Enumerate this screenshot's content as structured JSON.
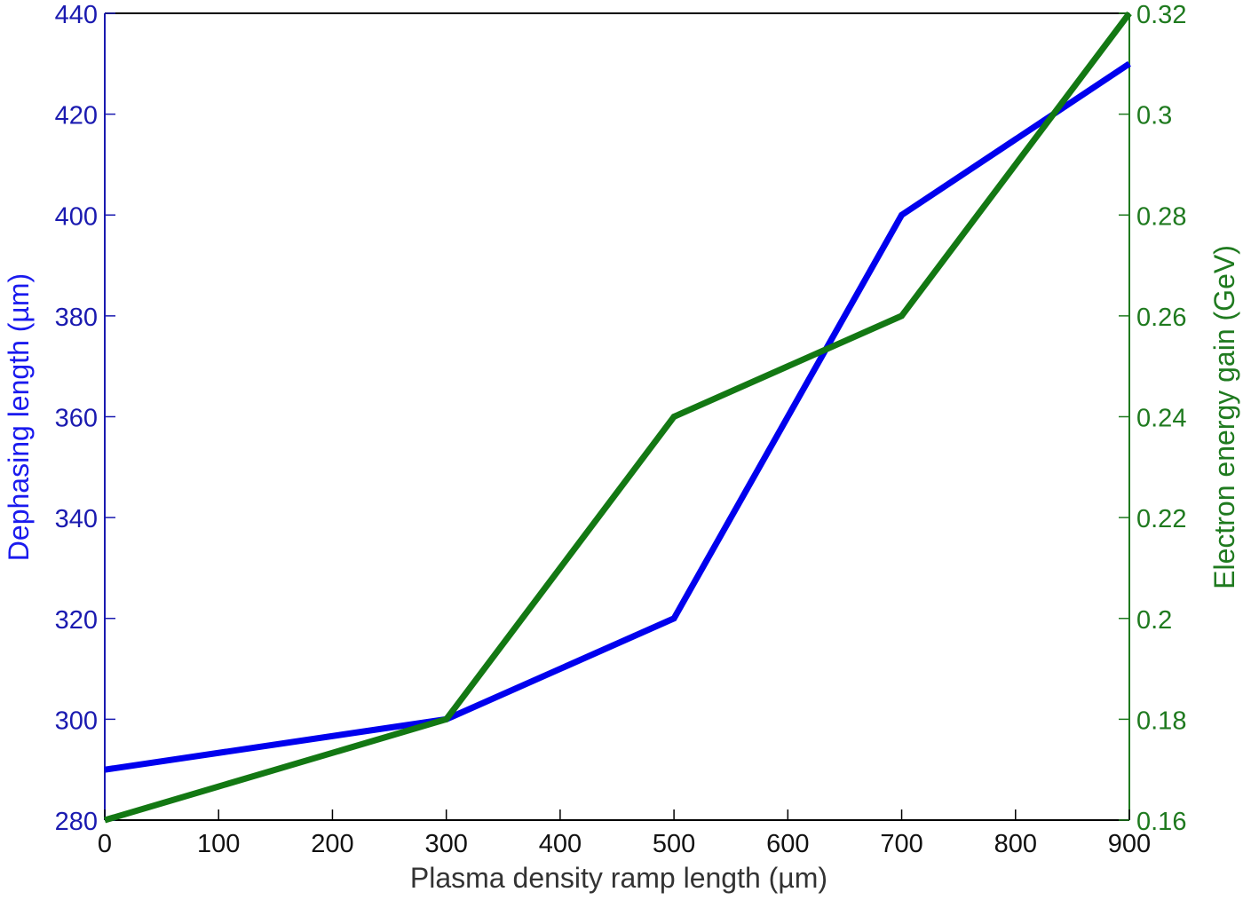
{
  "chart_data": {
    "type": "line",
    "title": "",
    "xlabel": "Plasma density ramp length (µm)",
    "ylabel": "Dephasing length (µm)",
    "ylabel_right": "Electron energy gain (GeV)",
    "x": [
      0,
      300,
      500,
      700,
      900
    ],
    "xlim": [
      0,
      900
    ],
    "xticks": [
      "0",
      "100",
      "200",
      "300",
      "400",
      "500",
      "600",
      "700",
      "800",
      "900"
    ],
    "ylim": [
      280,
      440
    ],
    "yticks": [
      "280",
      "300",
      "320",
      "340",
      "360",
      "380",
      "400",
      "420",
      "440"
    ],
    "ylim_right": [
      0.16,
      0.32
    ],
    "yticks_right": [
      "0.16",
      "0.18",
      "0.2",
      "0.22",
      "0.24",
      "0.26",
      "0.28",
      "0.3",
      "0.32"
    ],
    "grid": false,
    "legend": "none",
    "series": [
      {
        "name": "Dephasing length",
        "axis": "left",
        "color": "#0000ee",
        "values": [
          290,
          300,
          320,
          400,
          430
        ]
      },
      {
        "name": "Electron energy gain",
        "axis": "right",
        "color": "#137813",
        "values": [
          0.16,
          0.18,
          0.24,
          0.26,
          0.32
        ]
      }
    ]
  }
}
